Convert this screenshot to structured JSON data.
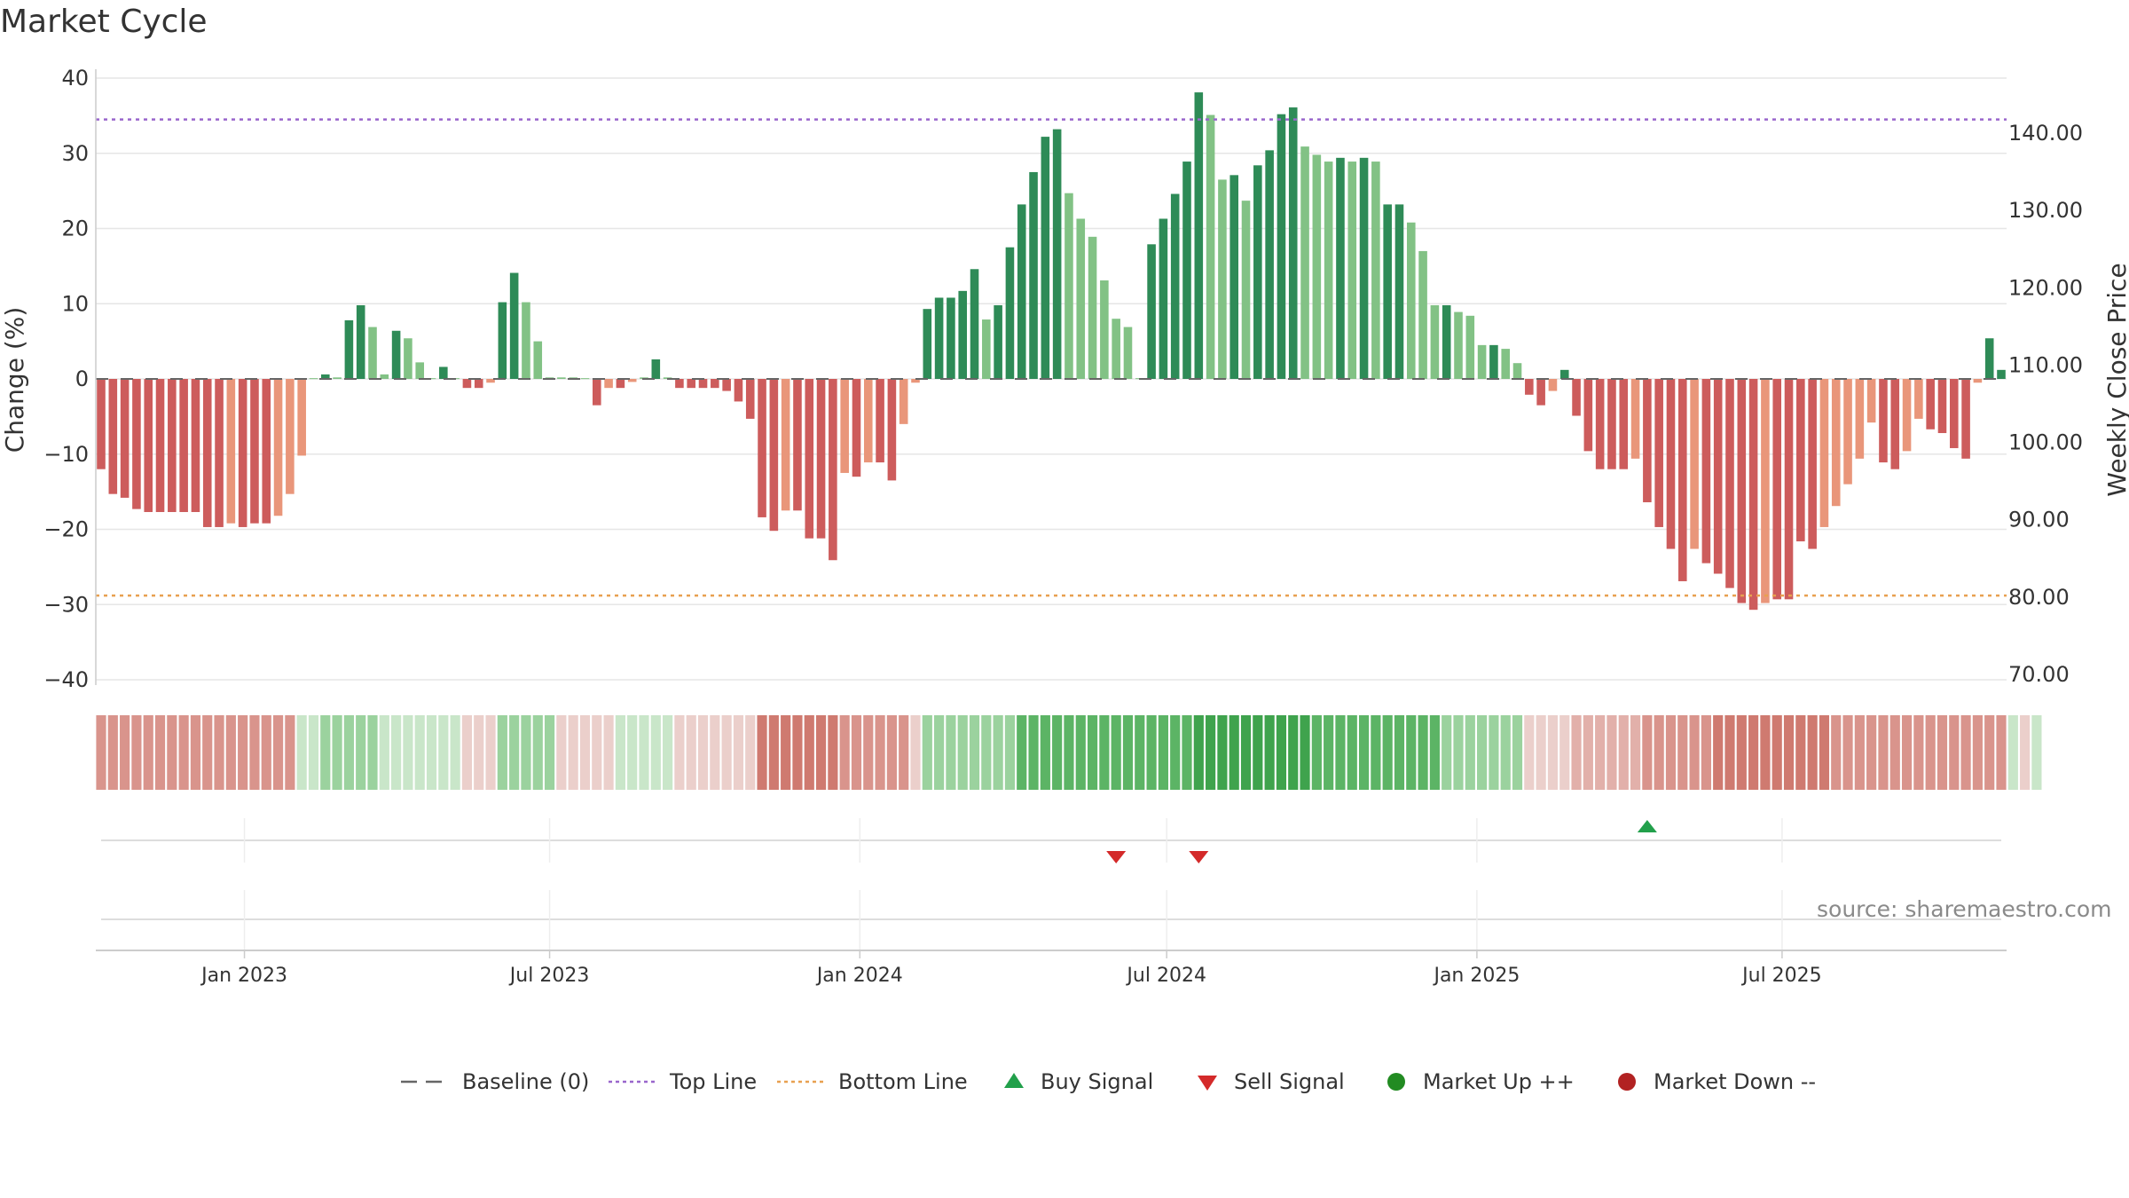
{
  "title": "Market Cycle",
  "source": "source: sharemaestro.com",
  "chart_data": {
    "type": "bar",
    "title": "Market Cycle",
    "ylabel": "Change (%)",
    "y2label": "Weekly Close Price",
    "ylim": [
      -40,
      40
    ],
    "y2lim": [
      70,
      140
    ],
    "yticks": [
      "40",
      "30",
      "20",
      "10",
      "0",
      "−10",
      "−20",
      "−30",
      "−40"
    ],
    "y2ticks": [
      "140.00",
      "130.00",
      "120.00",
      "110.00",
      "100.00",
      "90.00",
      "80.00",
      "70.00"
    ],
    "xticks": [
      "Jan 2023",
      "Jul 2023",
      "Jan 2024",
      "Jul 2024",
      "Jan 2025",
      "Jul 2025"
    ],
    "x_start": "2022-10-08",
    "top_line": 34.5,
    "bottom_line": -28.8,
    "colors": {
      "strong_up": "#2e8b57",
      "weak_up": "#82c285",
      "strong_down": "#cd5c5c",
      "weak_down": "#e9967a",
      "top_line": "#9966cc",
      "bottom_line": "#e8a050",
      "buy": "#22a04b",
      "sell": "#d42a2a",
      "market_up": "#228b22",
      "market_down": "#b22222"
    },
    "series": [
      {
        "name": "Change",
        "values": [
          -12,
          -15.3,
          -15.8,
          -17.3,
          -17.7,
          -17.7,
          -17.7,
          -17.7,
          -17.7,
          -19.7,
          -19.7,
          -19.2,
          -19.7,
          -19.2,
          -19.2,
          -18.2,
          -15.3,
          -10.2,
          0.1,
          0.6,
          0.2,
          7.8,
          9.8,
          6.9,
          0.6,
          6.4,
          5.4,
          2.2,
          0.1,
          1.6,
          0.1,
          -1.2,
          -1.2,
          -0.5,
          10.2,
          14.1,
          10.2,
          5,
          0.2,
          0.2,
          0.2,
          0.1,
          -3.5,
          -1.2,
          -1.2,
          -0.4,
          0.2,
          2.6,
          0.2,
          -1.2,
          -1.2,
          -1.2,
          -1.2,
          -1.6,
          -3,
          -5.3,
          -18.4,
          -20.2,
          -17.5,
          -17.5,
          -21.2,
          -21.2,
          -24.1,
          -12.5,
          -13,
          -11.1,
          -11.1,
          -13.5,
          -6,
          -0.5,
          9.3,
          10.8,
          10.8,
          11.7,
          14.6,
          7.9,
          9.8,
          17.5,
          23.2,
          27.5,
          32.2,
          33.2,
          24.7,
          21.3,
          18.9,
          13.1,
          8,
          6.9,
          0.1,
          17.9,
          21.3,
          24.6,
          28.9,
          38.1,
          35.1,
          26.5,
          27.1,
          23.7,
          28.4,
          30.4,
          35.2,
          36.1,
          30.9,
          29.8,
          28.9,
          29.4,
          28.9,
          29.4,
          28.9,
          23.2,
          23.2,
          20.8,
          17,
          9.8,
          9.8,
          8.9,
          8.4,
          4.5,
          4.5,
          4,
          2.1,
          -2.1,
          -3.5,
          -1.6,
          1.2,
          -4.9,
          -9.6,
          -12,
          -12,
          -12,
          -10.6,
          -16.4,
          -19.7,
          -22.6,
          -26.9,
          -22.6,
          -24.5,
          -25.9,
          -27.8,
          -29.8,
          -30.7,
          -29.8,
          -29.3,
          -29.3,
          -21.6,
          -22.6,
          -19.7,
          -16.9,
          -14,
          -10.6,
          -5.8,
          -11.1,
          -12,
          -9.6,
          -5.3,
          -6.7,
          -7.2,
          -9.2,
          -10.6,
          -0.5,
          5.4,
          1.2
        ],
        "categories": [
          "Strong Down",
          "Strong Down",
          "Strong Down",
          "Strong Down",
          "Strong Down",
          "Strong Down",
          "Strong Down",
          "Strong Down",
          "Strong Down",
          "Strong Down",
          "Strong Down",
          "Weak Down",
          "Strong Down",
          "Strong Down",
          "Strong Down",
          "Weak Down",
          "Weak Down",
          "Weak Down",
          "Weak Up",
          "Strong Up",
          "Weak Up",
          "Strong Up",
          "Strong Up",
          "Weak Up",
          "Weak Up",
          "Strong Up",
          "Weak Up",
          "Weak Up",
          "Weak Up",
          "Strong Up",
          "Weak Up",
          "Strong Down",
          "Strong Down",
          "Weak Down",
          "Strong Up",
          "Strong Up",
          "Weak Up",
          "Weak Up",
          "Weak Up",
          "Weak Up",
          "Weak Up",
          "Weak Up",
          "Strong Down",
          "Weak Down",
          "Strong Down",
          "Weak Down",
          "Weak Up",
          "Strong Up",
          "Weak Up",
          "Strong Down",
          "Strong Down",
          "Strong Down",
          "Strong Down",
          "Strong Down",
          "Strong Down",
          "Strong Down",
          "Strong Down",
          "Strong Down",
          "Weak Down",
          "Strong Down",
          "Strong Down",
          "Strong Down",
          "Strong Down",
          "Weak Down",
          "Strong Down",
          "Weak Down",
          "Strong Down",
          "Strong Down",
          "Weak Down",
          "Weak Down",
          "Strong Up",
          "Strong Up",
          "Strong Up",
          "Strong Up",
          "Strong Up",
          "Weak Up",
          "Strong Up",
          "Strong Up",
          "Strong Up",
          "Strong Up",
          "Strong Up",
          "Strong Up",
          "Weak Up",
          "Weak Up",
          "Weak Up",
          "Weak Up",
          "Weak Up",
          "Weak Up",
          "Weak Up",
          "Strong Up",
          "Strong Up",
          "Strong Up",
          "Strong Up",
          "Strong Up",
          "Weak Up",
          "Weak Up",
          "Strong Up",
          "Weak Up",
          "Strong Up",
          "Strong Up",
          "Strong Up",
          "Strong Up",
          "Weak Up",
          "Weak Up",
          "Weak Up",
          "Strong Up",
          "Weak Up",
          "Strong Up",
          "Weak Up",
          "Strong Up",
          "Strong Up",
          "Weak Up",
          "Weak Up",
          "Weak Up",
          "Strong Up",
          "Weak Up",
          "Weak Up",
          "Weak Up",
          "Strong Up",
          "Weak Up",
          "Weak Up",
          "Strong Down",
          "Strong Down",
          "Weak Down",
          "Strong Up",
          "Strong Down",
          "Strong Down",
          "Strong Down",
          "Strong Down",
          "Strong Down",
          "Weak Down",
          "Strong Down",
          "Strong Down",
          "Strong Down",
          "Strong Down",
          "Weak Down",
          "Strong Down",
          "Strong Down",
          "Strong Down",
          "Strong Down",
          "Strong Down",
          "Weak Down",
          "Strong Down",
          "Strong Down",
          "Strong Down",
          "Strong Down",
          "Weak Down",
          "Weak Down",
          "Weak Down",
          "Weak Down",
          "Weak Down",
          "Strong Down",
          "Strong Down",
          "Weak Down",
          "Weak Down",
          "Strong Down",
          "Strong Down",
          "Strong Down",
          "Strong Down",
          "Weak Down",
          "Strong Up",
          "Strong Up"
        ]
      }
    ],
    "trend_strip": [
      -3,
      -3,
      -3,
      -3,
      -3,
      -3,
      -3,
      -3,
      -3,
      -3,
      -3,
      -3,
      -3,
      -3,
      -3,
      -3,
      -3,
      1,
      1,
      2,
      2,
      2,
      2,
      2,
      1,
      1,
      1,
      1,
      1,
      1,
      1,
      -1,
      -1,
      -1,
      2,
      2,
      2,
      2,
      2,
      -1,
      -1,
      -1,
      -1,
      -1,
      1,
      1,
      1,
      1,
      1,
      -1,
      -1,
      -1,
      -1,
      -1,
      -1,
      -1,
      -4,
      -4,
      -4,
      -4,
      -4,
      -4,
      -4,
      -3,
      -3,
      -3,
      -3,
      -3,
      -3,
      -1,
      2,
      2,
      2,
      2,
      2,
      2,
      2,
      2,
      3,
      3,
      3,
      3,
      3,
      3,
      3,
      3,
      3,
      3,
      3,
      3,
      3,
      3,
      3,
      4,
      4,
      4,
      4,
      4,
      4,
      4,
      4,
      4,
      4,
      3,
      3,
      3,
      3,
      3,
      3,
      3,
      3,
      3,
      3,
      3,
      2,
      2,
      2,
      2,
      2,
      2,
      2,
      -1,
      -1,
      -1,
      -1,
      -2,
      -2,
      -2,
      -2,
      -2,
      -2,
      -3,
      -3,
      -3,
      -3,
      -3,
      -3,
      -4,
      -4,
      -4,
      -4,
      -4,
      -4,
      -4,
      -4,
      -4,
      -4,
      -3,
      -3,
      -3,
      -3,
      -3,
      -3,
      -3,
      -3,
      -3,
      -3,
      -3,
      -3,
      -3,
      -3,
      -3,
      1,
      -1,
      1
    ],
    "signals": [
      {
        "type": "sell",
        "date": "2024-06-01"
      },
      {
        "type": "sell",
        "date": "2024-07-20"
      },
      {
        "type": "buy",
        "date": "2025-04-12"
      }
    ],
    "legend": [
      {
        "label": "Baseline (0)",
        "symbol": "dash-gray"
      },
      {
        "label": "Top Line",
        "symbol": "dot-purple"
      },
      {
        "label": "Bottom Line",
        "symbol": "dot-orange"
      },
      {
        "label": "Buy Signal",
        "symbol": "triangle-up-green"
      },
      {
        "label": "Sell Signal",
        "symbol": "triangle-down-red"
      },
      {
        "label": "Market Up ++",
        "symbol": "circle-green"
      },
      {
        "label": "Market Down --",
        "symbol": "circle-red"
      }
    ]
  }
}
